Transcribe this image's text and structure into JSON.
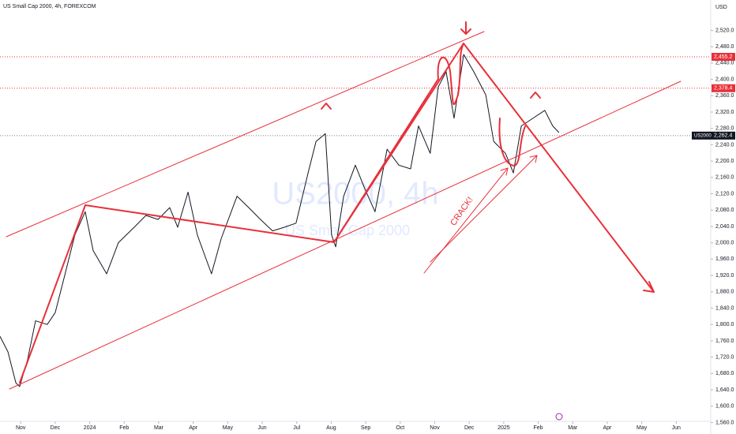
{
  "chart_data": {
    "type": "line",
    "title": "US Small Cap 2000, 4h, FOREXCOM",
    "currency": "USD",
    "watermark": "US2000, 4h",
    "watermark_subtitle": "US Small Cap 2000",
    "annotation": "CRACK!",
    "series": [
      {
        "name": "US2000",
        "color": "#131722",
        "x": [
          -0.6,
          -0.37,
          -0.14,
          -0.03,
          0.2,
          0.43,
          0.77,
          1.0,
          1.23,
          1.57,
          1.87,
          2.1,
          2.49,
          2.83,
          3.29,
          3.63,
          3.98,
          4.32,
          4.55,
          4.85,
          5.12,
          5.53,
          5.81,
          6.27,
          6.61,
          6.95,
          7.3,
          7.64,
          7.98,
          8.33,
          8.56,
          8.83,
          9.01,
          9.13,
          9.36,
          9.7,
          9.97,
          10.27,
          10.62,
          10.96,
          11.3,
          11.53,
          11.87,
          12.1,
          12.33,
          12.56,
          12.84,
          13.13,
          13.48,
          13.71,
          14.05,
          14.28,
          14.51,
          14.85,
          15.19,
          15.42,
          15.6
        ],
        "values": [
          1771,
          1733,
          1657,
          1648,
          1714,
          1809,
          1800,
          1829,
          1905,
          2019,
          2076,
          1981,
          1924,
          2000,
          2038,
          2067,
          2057,
          2086,
          2038,
          2124,
          2019,
          1924,
          2010,
          2114,
          2086,
          2057,
          2029,
          2038,
          2048,
          2171,
          2248,
          2267,
          2019,
          1990,
          2114,
          2190,
          2133,
          2076,
          2229,
          2190,
          2181,
          2286,
          2219,
          2381,
          2419,
          2305,
          2461,
          2419,
          2362,
          2248,
          2219,
          2171,
          2286,
          2305,
          2324,
          2286,
          2270
        ]
      }
    ],
    "last_price": {
      "value": 2262.4,
      "label": "2,262.4"
    },
    "price_lines": [
      {
        "value": 2455.2,
        "label": "2,455.2"
      },
      {
        "value": 2378.4,
        "label": "2,378.4"
      }
    ],
    "xlim": [
      -0.6,
      20
    ],
    "xticks": [
      {
        "value": 0,
        "label": "Nov"
      },
      {
        "value": 1,
        "label": "Dec"
      },
      {
        "value": 2,
        "label": "2024"
      },
      {
        "value": 3,
        "label": "Feb"
      },
      {
        "value": 4,
        "label": "Mar"
      },
      {
        "value": 5,
        "label": "Apr"
      },
      {
        "value": 6,
        "label": "May"
      },
      {
        "value": 7,
        "label": "Jun"
      },
      {
        "value": 8,
        "label": "Jul"
      },
      {
        "value": 9,
        "label": "Aug"
      },
      {
        "value": 10,
        "label": "Sep"
      },
      {
        "value": 11,
        "label": "Oct"
      },
      {
        "value": 12,
        "label": "Nov"
      },
      {
        "value": 13,
        "label": "Dec"
      },
      {
        "value": 14,
        "label": "2025"
      },
      {
        "value": 15,
        "label": "Feb"
      },
      {
        "value": 16,
        "label": "Mar"
      },
      {
        "value": 17,
        "label": "Apr"
      },
      {
        "value": 18,
        "label": "May"
      },
      {
        "value": 19,
        "label": "Jun"
      }
    ],
    "ylim": [
      1531.9,
      2594.3
    ],
    "yticks": [
      {
        "value": 1560,
        "label": "1,560.0"
      },
      {
        "value": 1600,
        "label": "1,600.0"
      },
      {
        "value": 1640,
        "label": "1,640.0"
      },
      {
        "value": 1680,
        "label": "1,680.0"
      },
      {
        "value": 1720,
        "label": "1,720.0"
      },
      {
        "value": 1760,
        "label": "1,760.0"
      },
      {
        "value": 1800,
        "label": "1,800.0"
      },
      {
        "value": 1840,
        "label": "1,840.0"
      },
      {
        "value": 1880,
        "label": "1,880.0"
      },
      {
        "value": 1920,
        "label": "1,920.0"
      },
      {
        "value": 1960,
        "label": "1,960.0"
      },
      {
        "value": 2000,
        "label": "2,000.0"
      },
      {
        "value": 2040,
        "label": "2,040.0"
      },
      {
        "value": 2080,
        "label": "2,080.0"
      },
      {
        "value": 2120,
        "label": "2,120.0"
      },
      {
        "value": 2160,
        "label": "2,160.0"
      },
      {
        "value": 2200,
        "label": "2,200.0"
      },
      {
        "value": 2240,
        "label": "2,240.0"
      },
      {
        "value": 2280,
        "label": "2,280.0"
      },
      {
        "value": 2320,
        "label": "2,320.0"
      },
      {
        "value": 2360,
        "label": "2,360.0"
      },
      {
        "value": 2400,
        "label": "2,400.0"
      },
      {
        "value": 2440,
        "label": "2,440.0"
      },
      {
        "value": 2480,
        "label": "2,480.0"
      },
      {
        "value": 2520,
        "label": "2,520.0"
      }
    ],
    "grid": false
  }
}
